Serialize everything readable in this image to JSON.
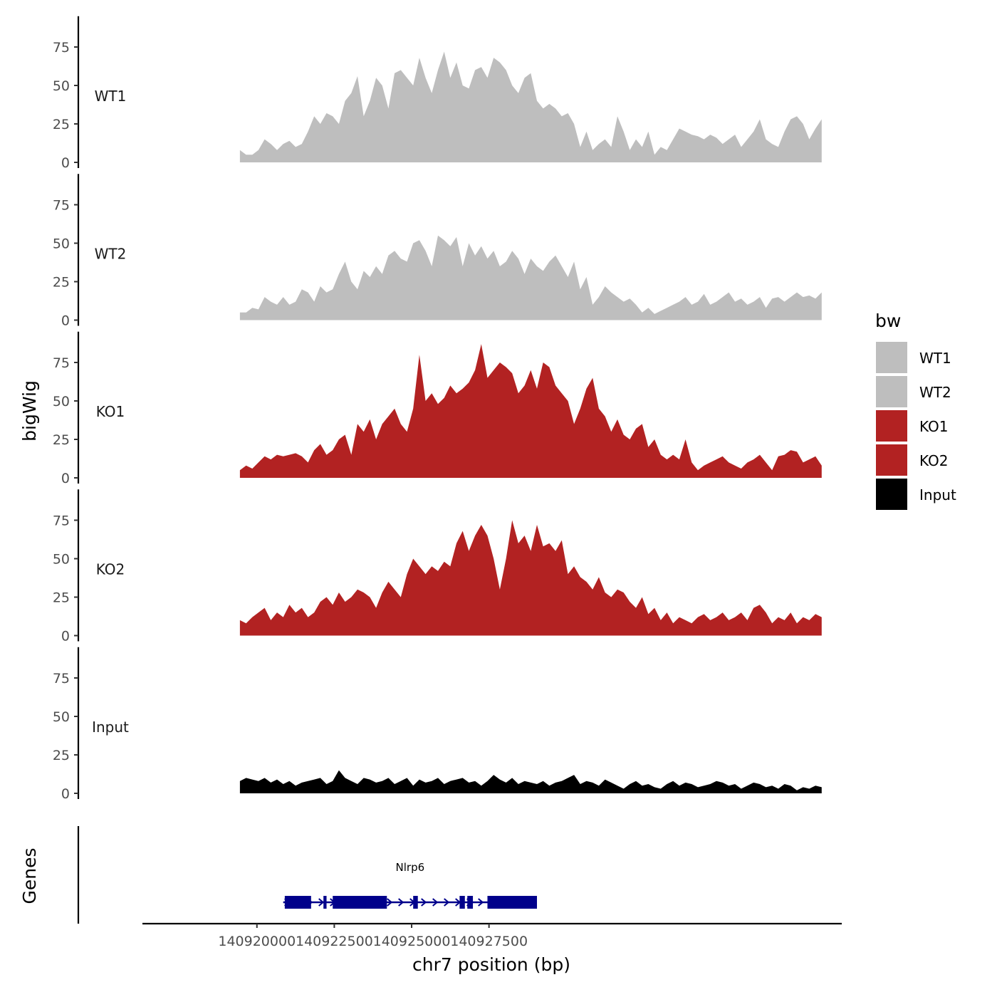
{
  "chart_data": {
    "type": "area",
    "xlabel": "chr7 position (bp)",
    "ylabel": "bigWig",
    "genes_label": "Genes",
    "xlim": [
      140916300,
      140938900
    ],
    "x_ticks": [
      140920000,
      140922500,
      140925000,
      140927500
    ],
    "x_tick_labels": [
      "140920000",
      "140922500",
      "140925000",
      "140927500"
    ],
    "ylim": [
      0,
      95
    ],
    "y_ticks": [
      0,
      25,
      50,
      75
    ],
    "y_tick_labels": [
      "0",
      "25",
      "50",
      "75"
    ],
    "x_start": 140919450,
    "x_step": 200,
    "legend": {
      "title": "bw",
      "entries": [
        {
          "label": "WT1",
          "color": "#bebebe"
        },
        {
          "label": "WT2",
          "color": "#bebebe"
        },
        {
          "label": "KO1",
          "color": "#b22222"
        },
        {
          "label": "KO2",
          "color": "#b22222"
        },
        {
          "label": "Input",
          "color": "#000000"
        }
      ]
    },
    "series": [
      {
        "name": "WT1",
        "color": "#bebebe",
        "values": [
          8,
          5,
          5,
          8,
          15,
          12,
          8,
          12,
          14,
          10,
          12,
          20,
          30,
          25,
          32,
          30,
          25,
          40,
          45,
          56,
          30,
          40,
          55,
          50,
          35,
          58,
          60,
          55,
          50,
          68,
          55,
          45,
          60,
          72,
          55,
          65,
          50,
          48,
          60,
          62,
          55,
          68,
          65,
          60,
          50,
          45,
          55,
          58,
          40,
          35,
          38,
          35,
          30,
          32,
          25,
          10,
          20,
          8,
          12,
          15,
          10,
          30,
          20,
          8,
          15,
          10,
          20,
          5,
          10,
          8,
          15,
          22,
          20,
          18,
          17,
          15,
          18,
          16,
          12,
          15,
          18,
          10,
          15,
          20,
          28,
          15,
          12,
          10,
          20,
          28,
          30,
          25,
          15,
          22,
          28
        ]
      },
      {
        "name": "WT2",
        "color": "#bebebe",
        "values": [
          5,
          5,
          8,
          7,
          15,
          12,
          10,
          15,
          10,
          12,
          20,
          18,
          12,
          22,
          18,
          20,
          30,
          38,
          25,
          20,
          32,
          28,
          35,
          30,
          42,
          45,
          40,
          38,
          50,
          52,
          45,
          35,
          55,
          52,
          48,
          54,
          35,
          50,
          42,
          48,
          40,
          45,
          35,
          38,
          45,
          40,
          30,
          40,
          35,
          32,
          38,
          42,
          35,
          28,
          38,
          20,
          28,
          10,
          15,
          22,
          18,
          15,
          12,
          14,
          10,
          5,
          8,
          4,
          6,
          8,
          10,
          12,
          15,
          10,
          12,
          17,
          10,
          12,
          15,
          18,
          12,
          14,
          10,
          12,
          15,
          8,
          14,
          15,
          12,
          15,
          18,
          15,
          16,
          14,
          18
        ]
      },
      {
        "name": "KO1",
        "color": "#b22222",
        "values": [
          5,
          8,
          6,
          10,
          14,
          12,
          15,
          14,
          15,
          16,
          14,
          10,
          18,
          22,
          15,
          18,
          25,
          28,
          15,
          35,
          30,
          38,
          25,
          35,
          40,
          45,
          35,
          30,
          45,
          80,
          50,
          55,
          48,
          52,
          60,
          55,
          58,
          62,
          70,
          87,
          65,
          70,
          75,
          72,
          68,
          55,
          60,
          70,
          58,
          75,
          72,
          60,
          55,
          50,
          35,
          45,
          58,
          65,
          45,
          40,
          30,
          38,
          28,
          25,
          32,
          35,
          20,
          25,
          15,
          12,
          15,
          12,
          25,
          10,
          5,
          8,
          10,
          12,
          14,
          10,
          8,
          6,
          10,
          12,
          15,
          10,
          5,
          14,
          15,
          18,
          17,
          10,
          12,
          14,
          8
        ]
      },
      {
        "name": "KO2",
        "color": "#b22222",
        "values": [
          10,
          8,
          12,
          15,
          18,
          10,
          15,
          12,
          20,
          15,
          18,
          12,
          15,
          22,
          25,
          20,
          28,
          22,
          25,
          30,
          28,
          25,
          18,
          28,
          35,
          30,
          25,
          40,
          50,
          45,
          40,
          45,
          42,
          48,
          45,
          60,
          68,
          55,
          65,
          72,
          65,
          50,
          30,
          50,
          75,
          60,
          65,
          55,
          72,
          58,
          60,
          55,
          62,
          40,
          45,
          38,
          35,
          30,
          38,
          28,
          25,
          30,
          28,
          22,
          18,
          25,
          14,
          18,
          10,
          15,
          8,
          12,
          10,
          8,
          12,
          14,
          10,
          12,
          15,
          10,
          12,
          15,
          10,
          18,
          20,
          15,
          8,
          12,
          10,
          15,
          8,
          12,
          10,
          14,
          12
        ]
      },
      {
        "name": "Input",
        "color": "#000000",
        "values": [
          8,
          10,
          9,
          8,
          10,
          7,
          9,
          6,
          8,
          5,
          7,
          8,
          9,
          10,
          6,
          8,
          15,
          10,
          8,
          6,
          10,
          9,
          7,
          8,
          10,
          6,
          8,
          10,
          5,
          9,
          7,
          8,
          10,
          6,
          8,
          9,
          10,
          7,
          8,
          5,
          8,
          12,
          9,
          7,
          10,
          6,
          8,
          7,
          6,
          8,
          5,
          7,
          8,
          10,
          12,
          6,
          8,
          7,
          5,
          9,
          7,
          5,
          3,
          6,
          8,
          5,
          6,
          4,
          3,
          6,
          8,
          5,
          7,
          6,
          4,
          5,
          6,
          8,
          7,
          5,
          6,
          3,
          5,
          7,
          6,
          4,
          5,
          3,
          6,
          5,
          2,
          4,
          3,
          5,
          4
        ]
      }
    ],
    "genes": [
      {
        "name": "Nlrp6",
        "start": 140920850,
        "end": 140929050,
        "strand": "+",
        "exons": [
          [
            140920900,
            140921750
          ],
          [
            140922150,
            140922250
          ],
          [
            140922450,
            140924200
          ],
          [
            140925050,
            140925200
          ],
          [
            140926550,
            140926720
          ],
          [
            140926800,
            140926980
          ],
          [
            140927450,
            140929050
          ]
        ]
      }
    ]
  }
}
